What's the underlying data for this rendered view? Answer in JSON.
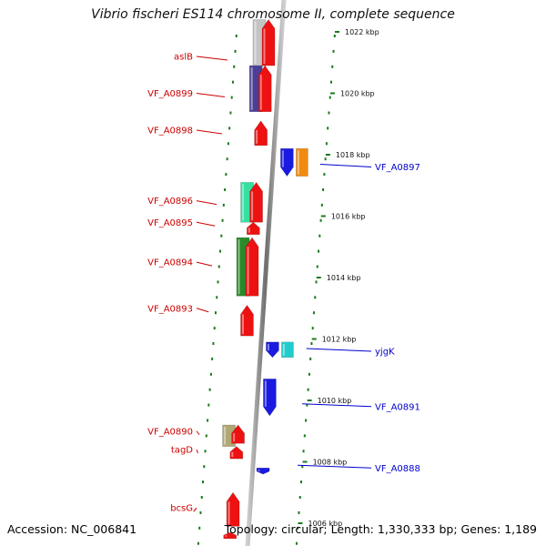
{
  "title": "Vibrio fischeri ES114 chromosome II, complete sequence",
  "footer": {
    "accession": "Accession: NC_006841",
    "topology": "Topology: circular; Length: 1,330,333 bp; Genes: 1,189"
  },
  "colors": {
    "left_label": "#cc0000",
    "right_label": "#0000cc",
    "tick": "#1a7a1a",
    "backbone": "#999999"
  },
  "ticks": [
    {
      "kbp": 1022,
      "label": "1022 kbp"
    },
    {
      "kbp": 1020,
      "label": "1020 kbp"
    },
    {
      "kbp": 1018,
      "label": "1018 kbp"
    },
    {
      "kbp": 1016,
      "label": "1016 kbp"
    },
    {
      "kbp": 1014,
      "label": "1014 kbp"
    },
    {
      "kbp": 1012,
      "label": "1012 kbp"
    },
    {
      "kbp": 1010,
      "label": "1010 kbp"
    },
    {
      "kbp": 1008,
      "label": "1008 kbp"
    },
    {
      "kbp": 1006,
      "label": "1006 kbp"
    }
  ],
  "left_labels": [
    {
      "text": "aslB",
      "kbp": 1021.2
    },
    {
      "text": "VF_A0899",
      "kbp": 1020.0
    },
    {
      "text": "VF_A0898",
      "kbp": 1018.8
    },
    {
      "text": "VF_A0896",
      "kbp": 1016.5
    },
    {
      "text": "VF_A0895",
      "kbp": 1015.8
    },
    {
      "text": "VF_A0894",
      "kbp": 1014.5
    },
    {
      "text": "VF_A0893",
      "kbp": 1013.0
    },
    {
      "text": "VF_A0890",
      "kbp": 1009.0
    },
    {
      "text": "tagD",
      "kbp": 1008.4
    },
    {
      "text": "bcsG",
      "kbp": 1006.5
    }
  ],
  "right_labels": [
    {
      "text": "VF_A0897",
      "kbp": 1017.6
    },
    {
      "text": "yjgK",
      "kbp": 1011.6
    },
    {
      "text": "VF_A0891",
      "kbp": 1009.8
    },
    {
      "text": "VF_A0888",
      "kbp": 1007.8
    }
  ],
  "genes": [
    {
      "name": "aslB-orth",
      "color": "#c4c4c4",
      "strand": "orth",
      "start": 1020.9,
      "end": 1022.4
    },
    {
      "name": "aslB",
      "color": "#ee1111",
      "strand": "fwd",
      "start": 1020.9,
      "end": 1022.4
    },
    {
      "name": "VF_A0899-orth",
      "color": "#4a3f96",
      "strand": "orth",
      "start": 1019.4,
      "end": 1020.9
    },
    {
      "name": "VF_A0899",
      "color": "#ee1111",
      "strand": "fwd",
      "start": 1019.4,
      "end": 1020.9
    },
    {
      "name": "VF_A0898",
      "color": "#ee1111",
      "strand": "fwd",
      "start": 1018.3,
      "end": 1019.1
    },
    {
      "name": "VF_A0897-orth",
      "color": "#f08a10",
      "strand": "orth-rev",
      "start": 1017.3,
      "end": 1018.2
    },
    {
      "name": "VF_A0897",
      "color": "#1a1ae0",
      "strand": "rev",
      "start": 1017.3,
      "end": 1018.2
    },
    {
      "name": "VF_A0896-orth",
      "color": "#33e0a0",
      "strand": "orth",
      "start": 1015.8,
      "end": 1017.1
    },
    {
      "name": "VF_A0896",
      "color": "#ee1111",
      "strand": "fwd",
      "start": 1015.8,
      "end": 1017.1
    },
    {
      "name": "VF_A0895",
      "color": "#ee1111",
      "strand": "fwd",
      "start": 1015.4,
      "end": 1015.8
    },
    {
      "name": "VF_A0894-orth",
      "color": "#2a8a2a",
      "strand": "orth",
      "start": 1013.4,
      "end": 1015.3
    },
    {
      "name": "VF_A0894",
      "color": "#ee1111",
      "strand": "fwd",
      "start": 1013.4,
      "end": 1015.3
    },
    {
      "name": "VF_A0893",
      "color": "#ee1111",
      "strand": "fwd",
      "start": 1012.1,
      "end": 1013.1
    },
    {
      "name": "yjgK-orth",
      "color": "#22cccc",
      "strand": "orth-rev",
      "start": 1011.4,
      "end": 1011.9
    },
    {
      "name": "yjgK",
      "color": "#1a1ae0",
      "strand": "rev",
      "start": 1011.4,
      "end": 1011.9
    },
    {
      "name": "VF_A0891",
      "color": "#1a1ae0",
      "strand": "rev",
      "start": 1009.5,
      "end": 1010.7
    },
    {
      "name": "VF_A0890-orth",
      "color": "#b0a874",
      "strand": "orth",
      "start": 1008.5,
      "end": 1009.2
    },
    {
      "name": "VF_A0890",
      "color": "#ee1111",
      "strand": "fwd",
      "start": 1008.6,
      "end": 1009.2
    },
    {
      "name": "tagD",
      "color": "#ee1111",
      "strand": "fwd",
      "start": 1008.1,
      "end": 1008.5
    },
    {
      "name": "VF_A0888",
      "color": "#1a1ae0",
      "strand": "rev",
      "start": 1007.6,
      "end": 1007.8
    },
    {
      "name": "bcsG",
      "color": "#ee1111",
      "strand": "fwd",
      "start": 1005.9,
      "end": 1007.0
    },
    {
      "name": "bcsG-next",
      "color": "#ee1111",
      "strand": "fwd",
      "start": 1005.5,
      "end": 1005.7
    }
  ]
}
